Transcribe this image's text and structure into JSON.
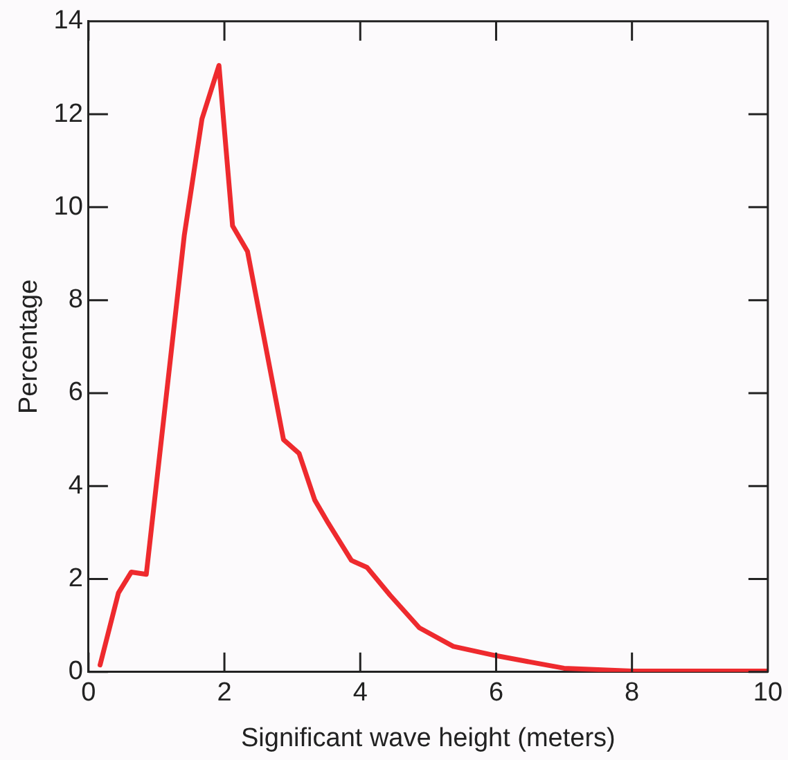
{
  "chart_data": {
    "type": "line",
    "xlabel": "Significant wave height (meters)",
    "ylabel": "Percentage",
    "x": [
      0.17,
      0.44,
      0.63,
      0.85,
      1.41,
      1.67,
      1.92,
      2.12,
      2.34,
      2.87,
      3.1,
      3.33,
      3.53,
      3.87,
      4.1,
      4.44,
      4.87,
      5.37,
      6.0,
      7.0,
      8.0,
      10.0
    ],
    "series": [
      {
        "color": "#ee2a2e",
        "values": [
          0.15,
          1.7,
          2.15,
          2.1,
          9.4,
          11.9,
          13.05,
          9.6,
          9.05,
          5.0,
          4.7,
          3.7,
          3.2,
          2.4,
          2.25,
          1.65,
          0.95,
          0.55,
          0.35,
          0.08,
          0.02,
          0.02
        ]
      }
    ],
    "xlim": [
      0,
      10
    ],
    "xticks": [
      0,
      2,
      4,
      6,
      8,
      10
    ],
    "ylim": [
      0,
      14
    ],
    "yticks": [
      0,
      2,
      4,
      6,
      8,
      10,
      12,
      14
    ],
    "grid": false,
    "legend": false,
    "marker": "none",
    "line_style": "solid"
  }
}
